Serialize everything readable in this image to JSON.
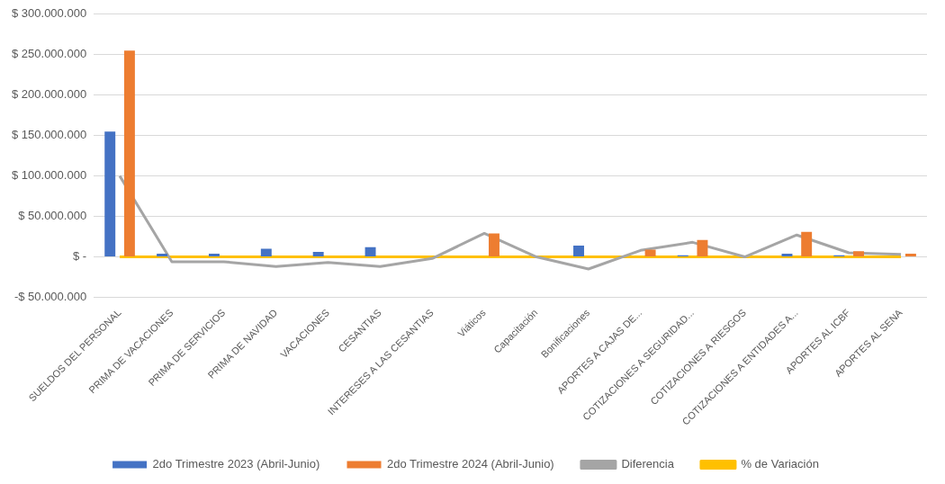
{
  "chart_data": {
    "type": "bar",
    "categories": [
      "SUELDOS DEL PERSONAL",
      "PRIMA DE VACACIONES",
      "PRIMA DE SERVICIOS",
      "PRIMA DE NAVIDAD",
      "VACACIONES",
      "CESANTIAS",
      "INTERESES A LAS CESANTIAS",
      "Viáticos",
      "Capacitación",
      "Bonificaciones",
      "APORTES A CAJAS DE...",
      "COTIZACIONES A SEGURIDAD...",
      "COTIZACIONES A RIESGOS",
      "COTIZACIONES A ENTIDADES A...",
      "APORTES AL ICBF",
      "APORTES AL SENA"
    ],
    "series": [
      {
        "name": "2do Trimestre 2023 (Abril-Junio)",
        "color": "#4472c4",
        "values": [
          155000000,
          4000000,
          4000000,
          10000000,
          6000000,
          12000000,
          0,
          0,
          0,
          14000000,
          0,
          2000000,
          0,
          4000000,
          2000000,
          0
        ]
      },
      {
        "name": "2do Trimestre 2024 (Abril-Junio)",
        "color": "#ed7d31",
        "values": [
          255000000,
          0,
          0,
          0,
          0,
          0,
          0,
          29000000,
          0,
          0,
          9000000,
          21000000,
          0,
          31000000,
          7000000,
          4000000
        ]
      },
      {
        "name": "Diferencia",
        "type": "line",
        "color": "#a5a5a5",
        "values": [
          100000000,
          -6000000,
          -6000000,
          -12000000,
          -7000000,
          -12000000,
          -2000000,
          29000000,
          0,
          -15000000,
          8000000,
          18000000,
          0,
          27000000,
          5000000,
          3000000
        ]
      },
      {
        "name": "% de Variación",
        "type": "line",
        "color": "#ffc000",
        "values": [
          0,
          0,
          0,
          0,
          0,
          0,
          0,
          0,
          0,
          0,
          0,
          0,
          0,
          0,
          0,
          0
        ]
      }
    ],
    "ylim": [
      -50000000,
      300000000
    ],
    "yticks": [
      {
        "value": -50000000,
        "label": "-$ 50.000.000"
      },
      {
        "value": 0,
        "label": "$ -"
      },
      {
        "value": 50000000,
        "label": "$ 50.000.000"
      },
      {
        "value": 100000000,
        "label": "$ 100.000.000"
      },
      {
        "value": 150000000,
        "label": "$ 150.000.000"
      },
      {
        "value": 200000000,
        "label": "$ 200.000.000"
      },
      {
        "value": 250000000,
        "label": "$ 250.000.000"
      },
      {
        "value": 300000000,
        "label": "$ 300.000.000"
      }
    ],
    "grid": "y",
    "legend": "bottom",
    "marker": "none"
  }
}
